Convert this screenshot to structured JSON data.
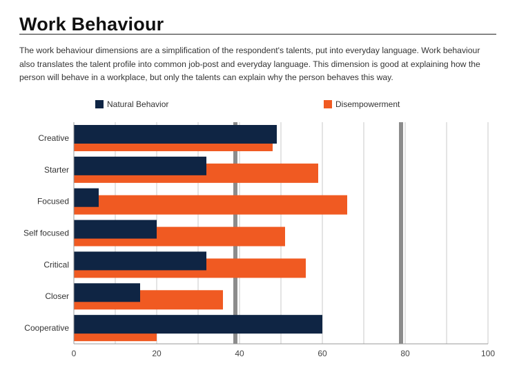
{
  "page": {
    "title": "Work Behaviour",
    "description": "The work behaviour dimensions are a simplification of the respondent's talents, put into everyday language. Work behaviour also translates the talent profile into common job-post and everyday language. This dimension is good at explaining how the person will behave in a workplace, but only the talents can explain why the person behaves this way."
  },
  "colors": {
    "natural": "#0f2544",
    "disempowerment": "#f05a22",
    "grid": "#c8c8c8",
    "reference_line": "#8c8c8c"
  },
  "chart_data": {
    "type": "bar",
    "orientation": "horizontal",
    "categories": [
      "Creative",
      "Starter",
      "Focused",
      "Self focused",
      "Critical",
      "Closer",
      "Cooperative"
    ],
    "series": [
      {
        "name": "Natural Behavior",
        "values": [
          49,
          32,
          6,
          20,
          32,
          16,
          60
        ]
      },
      {
        "name": "Disempowerment",
        "values": [
          48,
          59,
          66,
          51,
          56,
          36,
          20
        ]
      }
    ],
    "xlim": [
      0,
      100
    ],
    "x_ticks": [
      0,
      20,
      40,
      60,
      80,
      100
    ],
    "reference_lines": [
      39,
      79
    ],
    "grid": true,
    "legend_position": "top"
  }
}
